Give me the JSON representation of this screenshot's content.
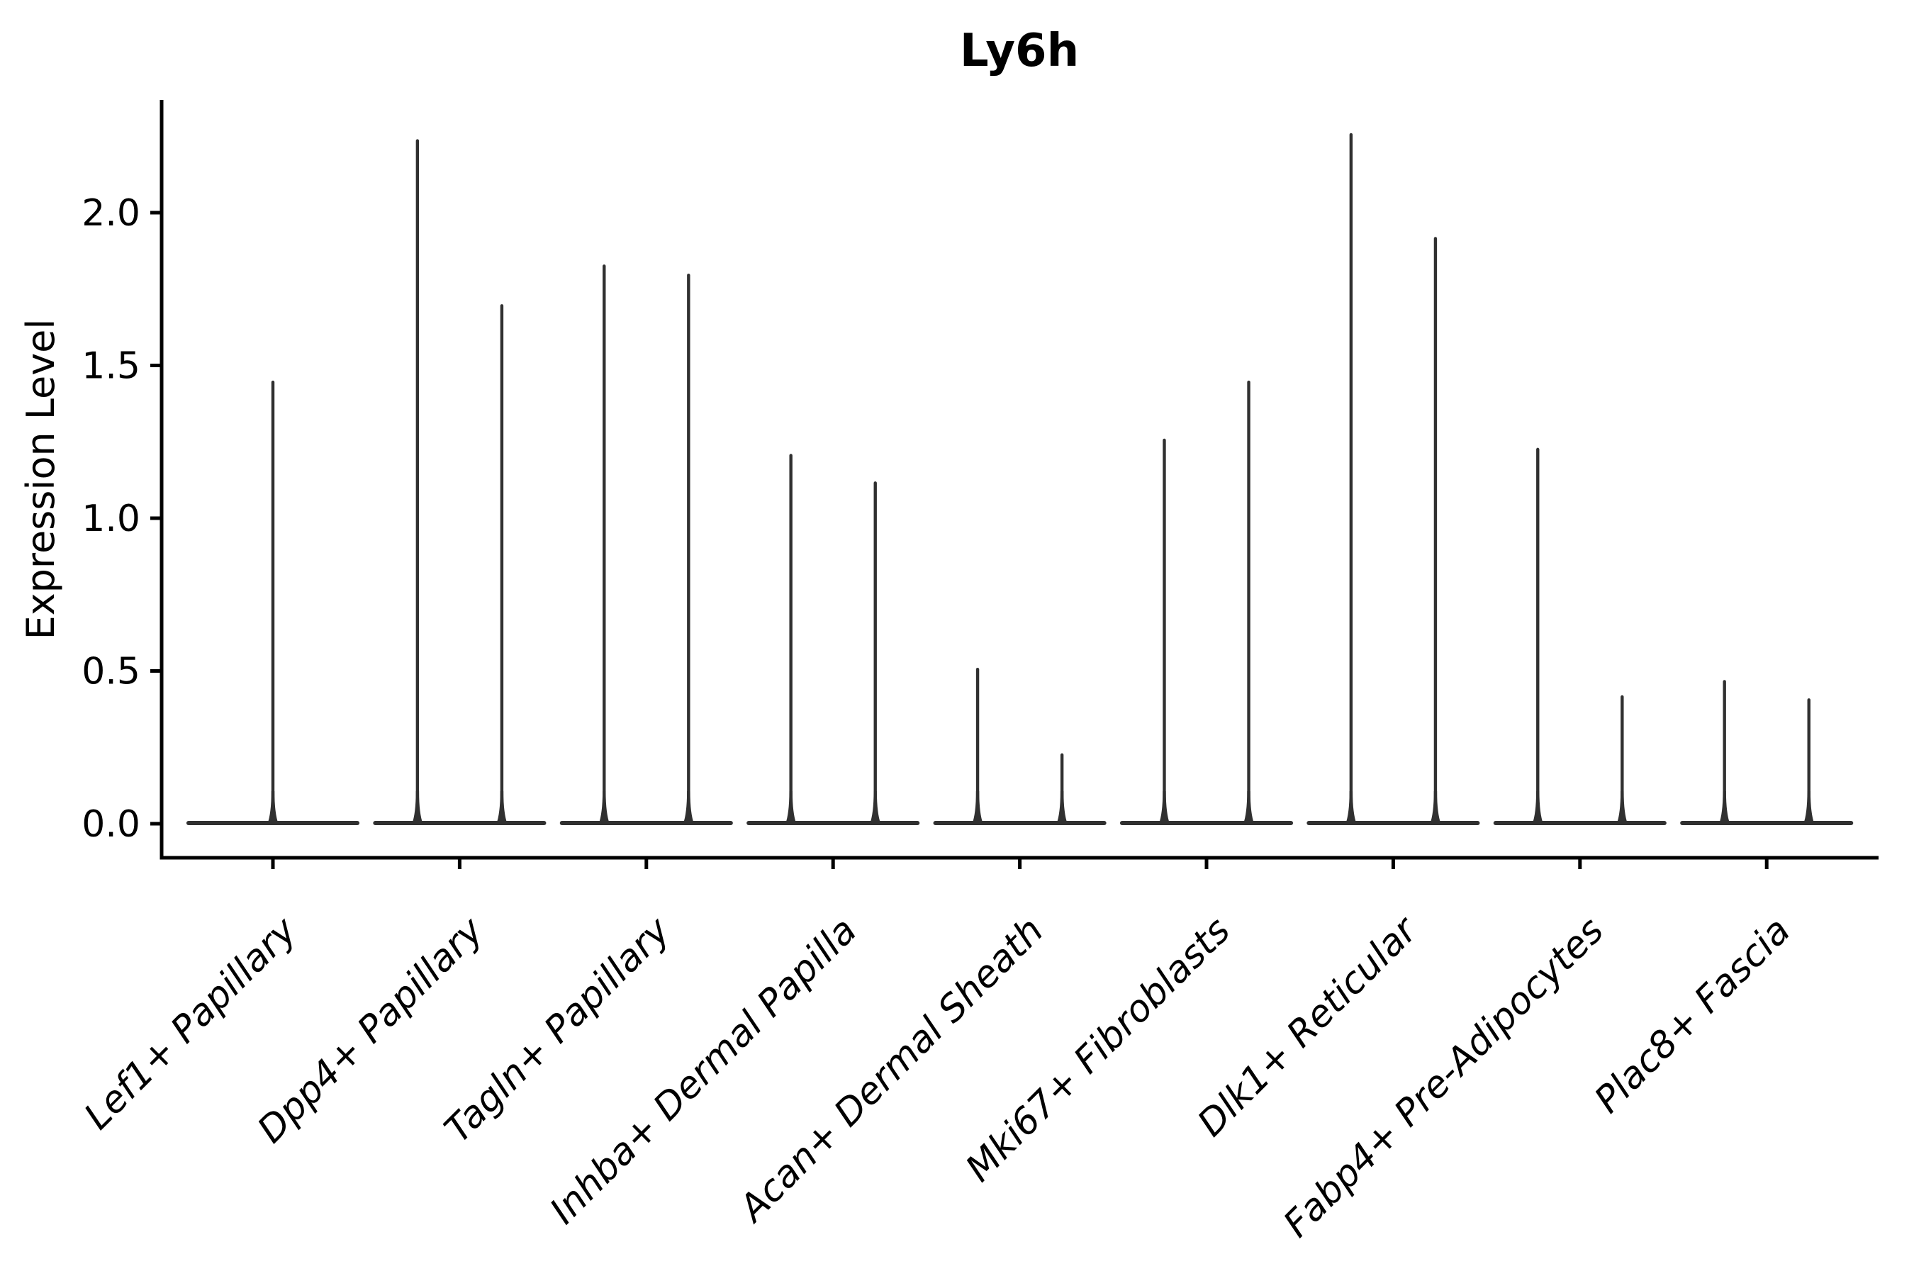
{
  "figure": {
    "title": "Ly6h",
    "ylabel": "Expression Level"
  },
  "chart_data": {
    "type": "violin",
    "title": "Ly6h",
    "xlabel": "",
    "ylabel": "Expression Level",
    "ylim": [
      -0.11,
      2.37
    ],
    "yticks": [
      0.0,
      0.5,
      1.0,
      1.5,
      2.0
    ],
    "ytick_labels": [
      "0.0",
      "0.5",
      "1.0",
      "1.5",
      "2.0"
    ],
    "grid": false,
    "legend_position": "none",
    "x_label_rotation_deg": 45,
    "violin_base_halfwidth_frac": 0.452,
    "violin_pair_offset_frac": 0.226,
    "categories": [
      {
        "label": "Lef1+ Papillary",
        "violins": [
          {
            "offset": 0.0,
            "max": 1.45
          }
        ]
      },
      {
        "label": "Dpp4+ Papillary",
        "violins": [
          {
            "offset": -0.226,
            "max": 2.24
          },
          {
            "offset": 0.226,
            "max": 1.7
          }
        ]
      },
      {
        "label": "Tagln+ Papillary",
        "violins": [
          {
            "offset": -0.226,
            "max": 1.83
          },
          {
            "offset": 0.226,
            "max": 1.8
          }
        ]
      },
      {
        "label": "Inhba+ Dermal Papilla",
        "violins": [
          {
            "offset": -0.226,
            "max": 1.21
          },
          {
            "offset": 0.226,
            "max": 1.12
          }
        ]
      },
      {
        "label": "Acan+ Dermal Sheath",
        "violins": [
          {
            "offset": -0.226,
            "max": 0.51
          },
          {
            "offset": 0.226,
            "max": 0.23
          }
        ]
      },
      {
        "label": "Mki67+ Fibroblasts",
        "violins": [
          {
            "offset": -0.226,
            "max": 1.26
          },
          {
            "offset": 0.226,
            "max": 1.45
          }
        ]
      },
      {
        "label": "Dlk1+ Reticular",
        "violins": [
          {
            "offset": -0.226,
            "max": 2.26
          },
          {
            "offset": 0.226,
            "max": 1.92
          }
        ]
      },
      {
        "label": "Fabp4+ Pre-Adipocytes",
        "violins": [
          {
            "offset": -0.226,
            "max": 1.23
          },
          {
            "offset": 0.226,
            "max": 0.42
          }
        ]
      },
      {
        "label": "Plac8+ Fascia",
        "violins": [
          {
            "offset": -0.226,
            "max": 0.47
          },
          {
            "offset": 0.226,
            "max": 0.41
          }
        ]
      }
    ],
    "colors": {
      "violin": "#303030",
      "axis": "#000000",
      "text": "#000000",
      "background": "#ffffff"
    }
  }
}
